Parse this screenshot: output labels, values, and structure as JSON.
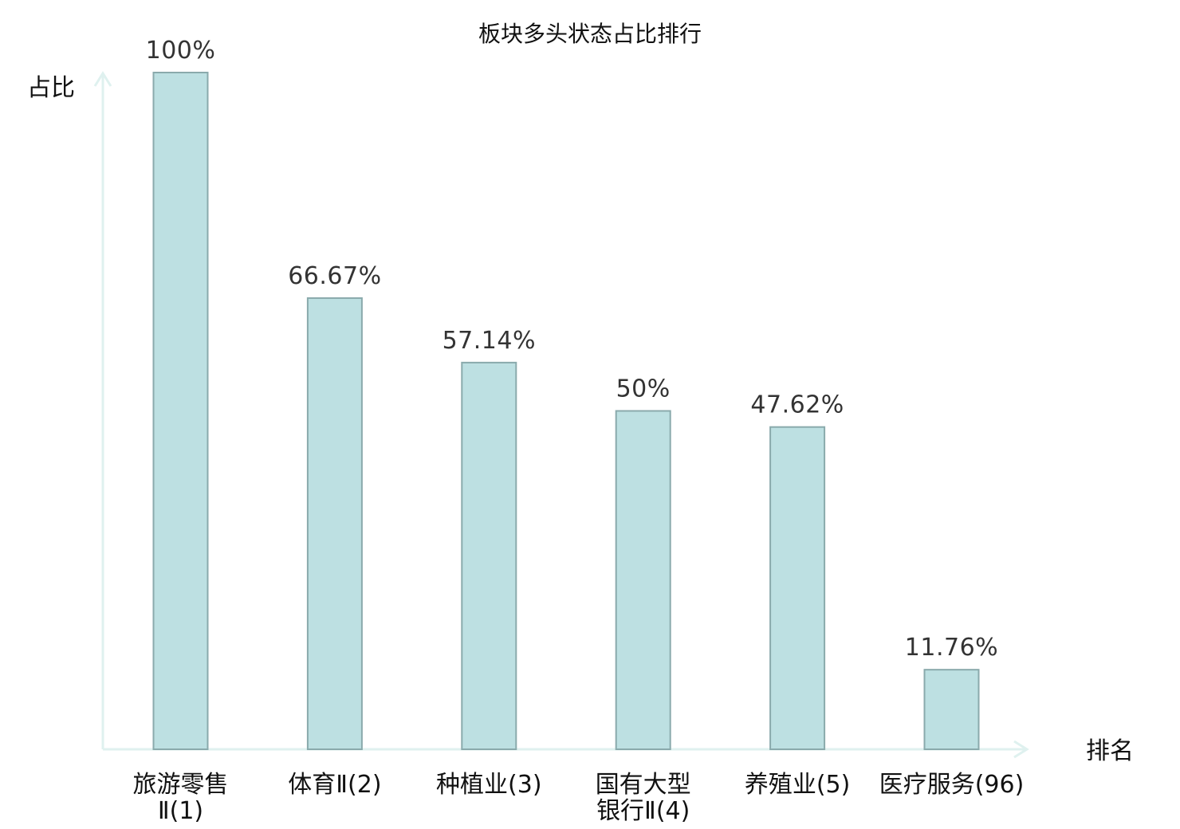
{
  "chart_data": {
    "type": "bar",
    "title": "板块多头状态占比排行",
    "ylabel": "占比",
    "xlabel": "排名",
    "ylim": [
      0,
      100
    ],
    "grid": false,
    "categories": [
      [
        "旅游零售",
        "Ⅱ(1)"
      ],
      [
        "体育Ⅱ(2)"
      ],
      [
        "种植业(3)"
      ],
      [
        "国有大型",
        "银行Ⅱ(4)"
      ],
      [
        "养殖业(5)"
      ],
      [
        "医疗服务(96)"
      ]
    ],
    "values": [
      100,
      66.67,
      57.14,
      50,
      47.62,
      11.76
    ],
    "value_labels": [
      "100%",
      "66.67%",
      "57.14%",
      "50%",
      "47.62%",
      "11.76%"
    ],
    "highlight_index": 5,
    "colors": {
      "bar_fill": "#bde0e2",
      "bar_stroke": "#8aaaac",
      "axis": "#dff1ef",
      "highlight_text": "#e8191c",
      "text": "#111111"
    }
  }
}
